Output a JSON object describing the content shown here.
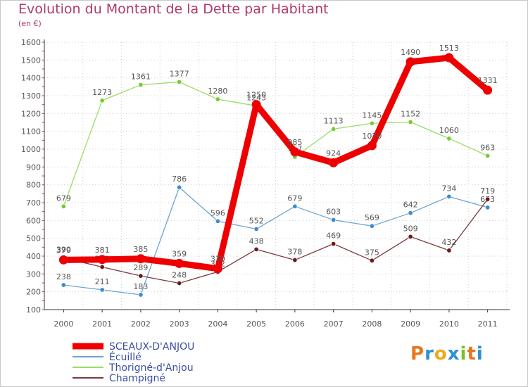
{
  "title": "Evolution du Montant de la Dette par Habitant",
  "subtitle": "(en €)",
  "logo": {
    "letters": [
      "P",
      "r",
      "o",
      "x",
      "i",
      "t",
      "i"
    ],
    "colors": [
      "#e8761c",
      "#2f8fd0",
      "#f0a81c",
      "#2f8fd0",
      "#7bbf2a",
      "#e8761c",
      "#2f8fd0"
    ]
  },
  "chart_data": {
    "type": "line",
    "x": [
      "2000",
      "2001",
      "2002",
      "2003",
      "2004",
      "2005",
      "2006",
      "2007",
      "2008",
      "2009",
      "2010",
      "2011"
    ],
    "ylim": [
      100,
      1600
    ],
    "yticks": [
      "100",
      "200",
      "300",
      "400",
      "500",
      "600",
      "700",
      "800",
      "900",
      "1000",
      "1100",
      "1200",
      "1300",
      "1400",
      "1500",
      "1600"
    ],
    "grid": true,
    "legend_position": "bottom-left",
    "series": [
      {
        "name": "SCEAUX-D'ANJOU",
        "values": [
          379,
          381,
          385,
          359,
          330,
          1250,
          985,
          924,
          1020,
          1490,
          1513,
          1331
        ],
        "labels": [
          "379",
          "381",
          "385",
          "359",
          "330",
          "1250",
          "985",
          "924",
          "1020",
          "1490",
          "1513",
          "1331"
        ],
        "color": "#ee0000",
        "bold": true
      },
      {
        "name": "Écuillé",
        "values": [
          238,
          211,
          183,
          786,
          596,
          552,
          679,
          603,
          569,
          642,
          734,
          673
        ],
        "labels": [
          "238",
          "211",
          "183",
          "786",
          "596",
          "552",
          "679",
          "603",
          "569",
          "642",
          "734",
          "673"
        ],
        "color": "#6da4cf",
        "marker": "#3d8bd0",
        "bold": false
      },
      {
        "name": "Thorigné-d'Anjou",
        "values": [
          679,
          1273,
          1361,
          1377,
          1280,
          1243,
          957,
          1113,
          1145,
          1152,
          1060,
          963
        ],
        "labels": [
          "679",
          "1273",
          "1361",
          "1377",
          "1280",
          "1243",
          "957",
          "1113",
          "1145",
          "1152",
          "1060",
          "963"
        ],
        "color": "#99dd66",
        "marker": "#77cc33",
        "bold": false
      },
      {
        "name": "Champigné",
        "values": [
          390,
          339,
          289,
          248,
          312,
          438,
          378,
          469,
          375,
          509,
          432,
          719
        ],
        "labels": [
          "390",
          "339",
          "289",
          "248",
          "312",
          "438",
          "378",
          "469",
          "375",
          "509",
          "432",
          "719"
        ],
        "color": "#7a3a3a",
        "marker": "#6a1a1a",
        "bold": false
      }
    ]
  }
}
